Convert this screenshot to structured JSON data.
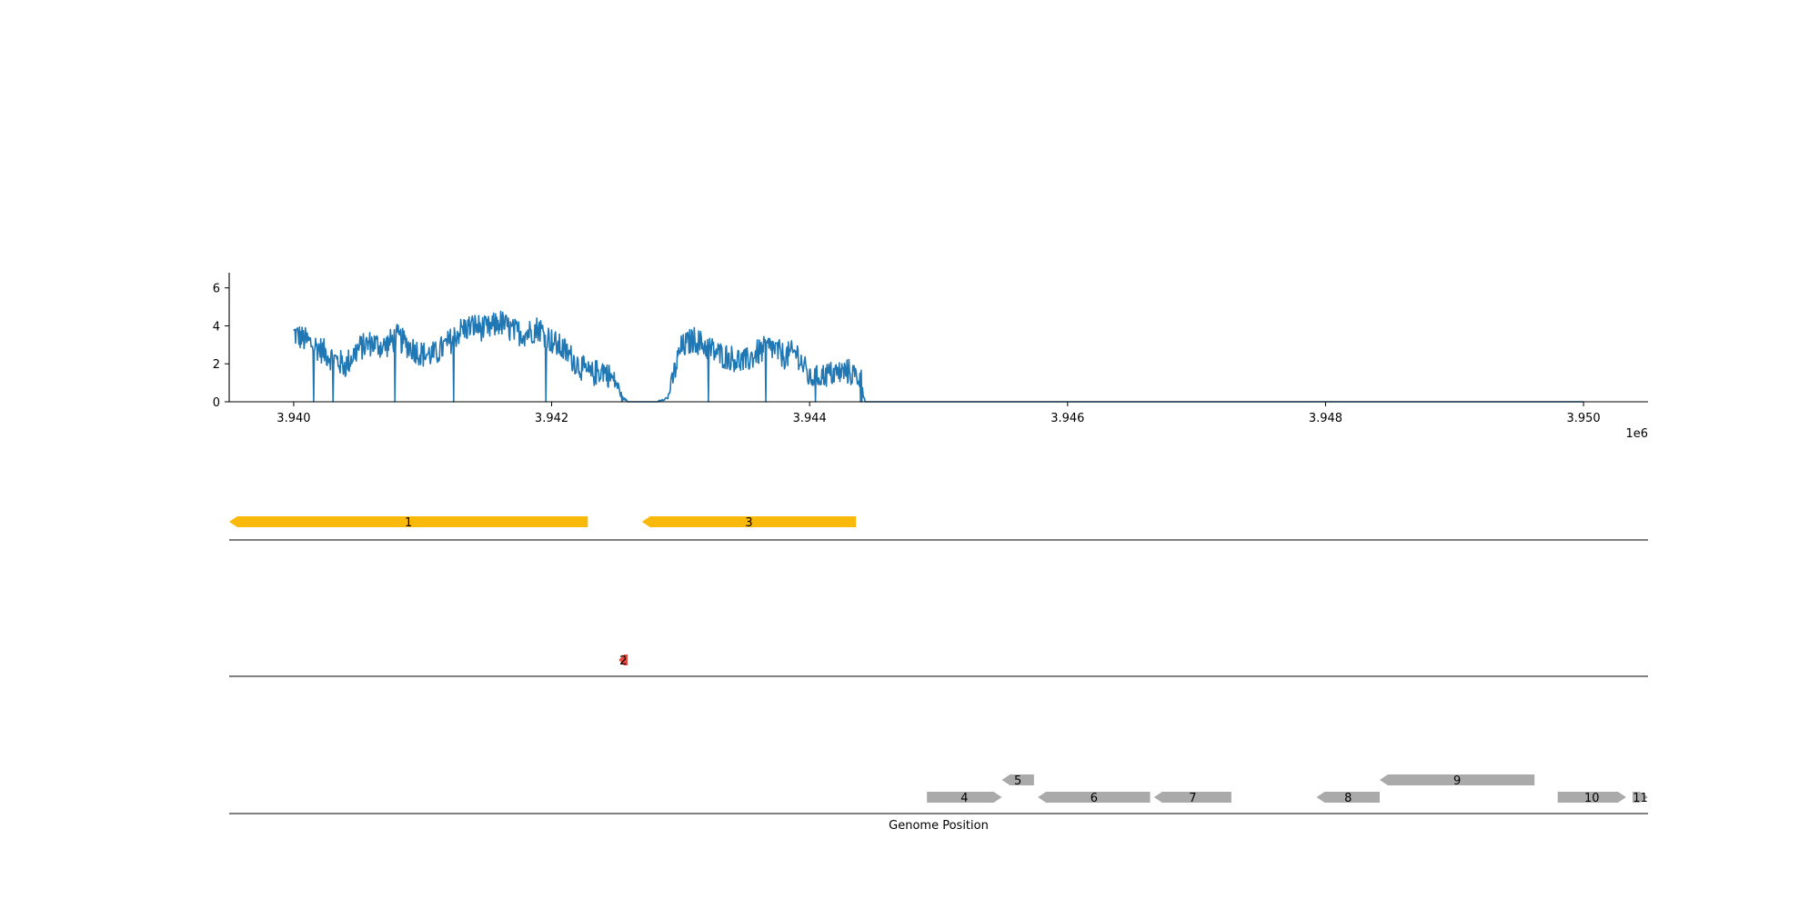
{
  "chart_data": [
    {
      "type": "line",
      "panel": "coverage",
      "xlim": [
        3939500,
        3950500
      ],
      "ylim": [
        0,
        6.8
      ],
      "x_ticks": [
        3940000,
        3942000,
        3944000,
        3946000,
        3948000,
        3950000
      ],
      "x_tick_labels": [
        "3.940",
        "3.942",
        "3.944",
        "3.946",
        "3.948",
        "3.950"
      ],
      "x_offset_label": "1e6",
      "y_ticks": [
        0,
        2,
        4,
        6
      ],
      "y_tick_labels": [
        "0",
        "2",
        "4",
        "6"
      ],
      "color": "#1f77b4",
      "series": [
        {
          "x": [
            3940000,
            3940100,
            3940200,
            3940300,
            3940400,
            3940500,
            3940600,
            3940700,
            3940800,
            3940900,
            3941000,
            3941100,
            3941200,
            3941300,
            3941400,
            3941500,
            3941600,
            3941700,
            3941800,
            3941900,
            3942000,
            3942100,
            3942200,
            3942300,
            3942400,
            3942500,
            3942550,
            3942600,
            3942700,
            3942800,
            3942900,
            3943000,
            3943100,
            3943200,
            3943300,
            3943400,
            3943500,
            3943600,
            3943700,
            3943800,
            3943900,
            3944000,
            3944100,
            3944200,
            3944300,
            3944400,
            3944430,
            3944500,
            3945000,
            3946000,
            3947000,
            3948000,
            3949000,
            3950000
          ],
          "values": [
            3.6,
            3.2,
            2.8,
            2.3,
            1.9,
            2.8,
            3.1,
            2.9,
            3.4,
            2.9,
            2.5,
            2.5,
            3.1,
            3.8,
            4.0,
            3.8,
            4.2,
            3.7,
            3.6,
            3.9,
            3.2,
            2.7,
            2.0,
            1.4,
            1.7,
            1.0,
            0.2,
            0.0,
            0.0,
            0.0,
            0.2,
            2.8,
            3.3,
            2.9,
            2.5,
            2.3,
            2.1,
            2.6,
            2.9,
            2.4,
            2.6,
            1.2,
            1.4,
            1.5,
            1.6,
            1.2,
            0.0,
            0.0,
            0.0,
            0.0,
            0.0,
            0.0,
            0.0,
            0.0
          ]
        }
      ]
    },
    {
      "type": "gene-track",
      "panel": "track-1",
      "genes": [
        {
          "label": "1",
          "start": 3939500,
          "end": 3942280,
          "strand": "-",
          "color": "#f9b90b"
        },
        {
          "label": "3",
          "start": 3942700,
          "end": 3944360,
          "strand": "-",
          "color": "#f9b90b"
        }
      ]
    },
    {
      "type": "gene-track",
      "panel": "track-2",
      "genes": [
        {
          "label": "2",
          "start": 3942520,
          "end": 3942590,
          "strand": "-",
          "color": "#e8483b"
        }
      ]
    },
    {
      "type": "gene-track",
      "panel": "track-3",
      "xlabel": "Genome Position",
      "genes": [
        {
          "label": "4",
          "start": 3944910,
          "end": 3945490,
          "strand": "+",
          "color": "#aaaaaa",
          "row": 0
        },
        {
          "label": "5",
          "start": 3945490,
          "end": 3945740,
          "strand": "-",
          "color": "#aaaaaa",
          "row": 1
        },
        {
          "label": "6",
          "start": 3945770,
          "end": 3946640,
          "strand": "-",
          "color": "#aaaaaa",
          "row": 0
        },
        {
          "label": "7",
          "start": 3946670,
          "end": 3947270,
          "strand": "-",
          "color": "#aaaaaa",
          "row": 0
        },
        {
          "label": "8",
          "start": 3947930,
          "end": 3948420,
          "strand": "-",
          "color": "#aaaaaa",
          "row": 0
        },
        {
          "label": "9",
          "start": 3948420,
          "end": 3949620,
          "strand": "-",
          "color": "#aaaaaa",
          "row": 1
        },
        {
          "label": "10",
          "start": 3949800,
          "end": 3950330,
          "strand": "+",
          "color": "#aaaaaa",
          "row": 0
        },
        {
          "label": "11",
          "start": 3950380,
          "end": 3950500,
          "strand": "+",
          "color": "#aaaaaa",
          "row": 0
        }
      ]
    }
  ]
}
